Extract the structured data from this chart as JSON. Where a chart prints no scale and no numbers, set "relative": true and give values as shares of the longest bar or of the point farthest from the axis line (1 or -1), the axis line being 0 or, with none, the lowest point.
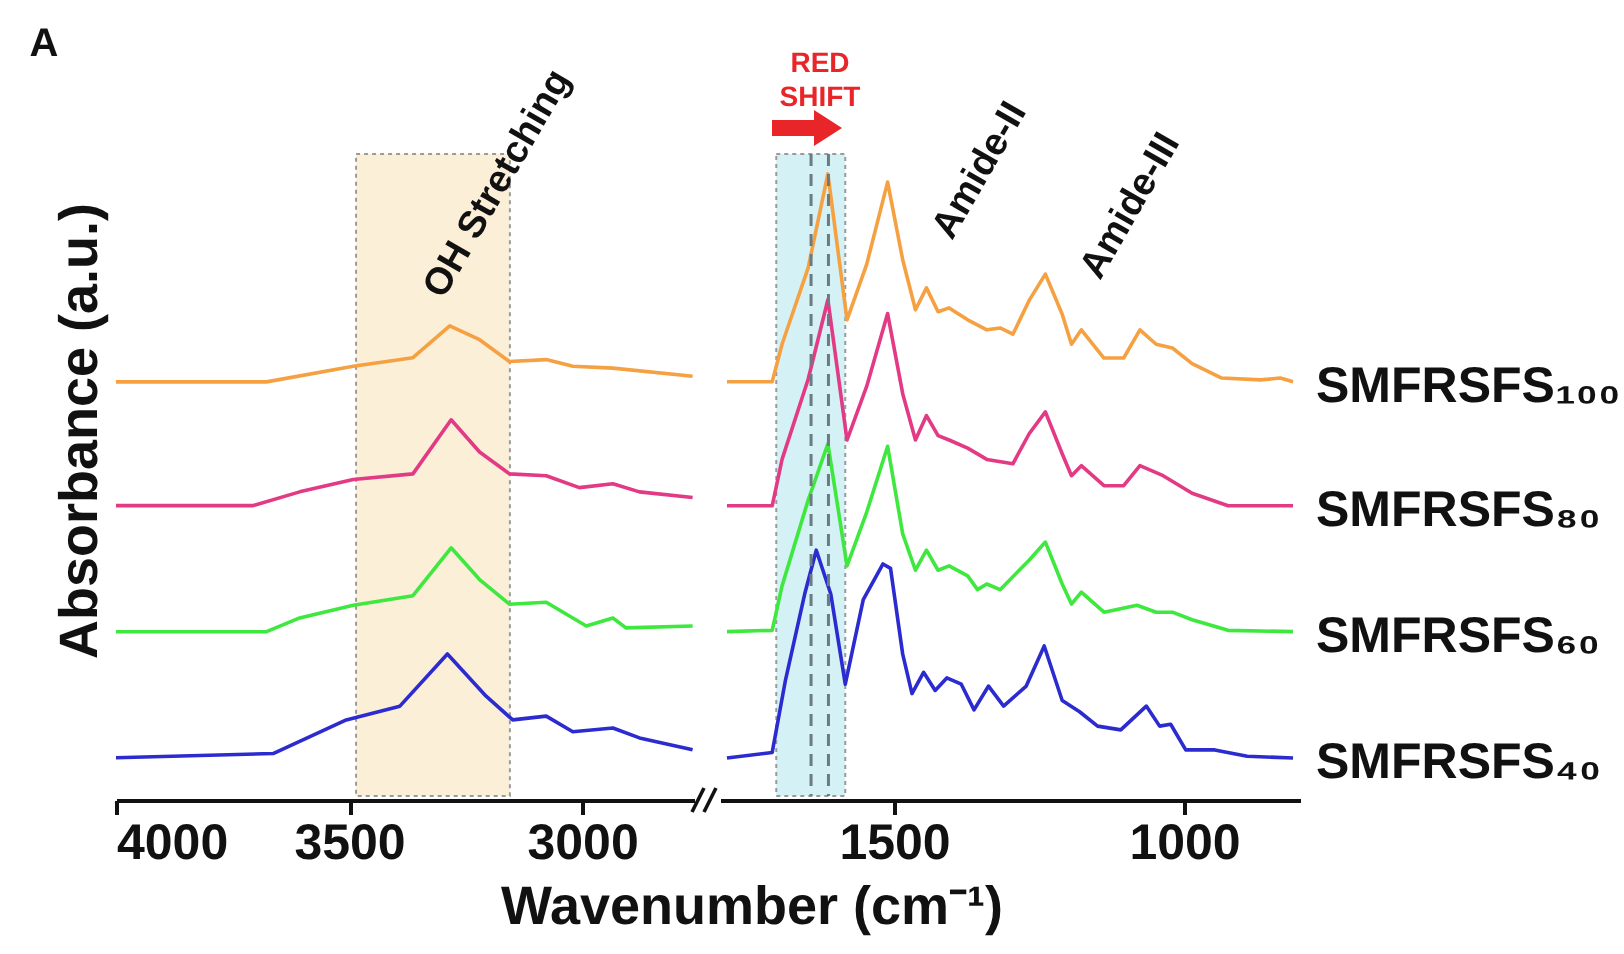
{
  "chart_data": [
    {
      "type": "line",
      "title": "A",
      "ylabel": "Absorbance (a.u.)",
      "relative": true,
      "xlim": [
        4000,
        2760
      ],
      "xticks": [
        4000,
        3500,
        3000
      ],
      "bands": [
        {
          "axis": "x",
          "from": 3485,
          "to": 3155,
          "label": "OH Stretching",
          "color": "#fbefd8"
        }
      ],
      "series": [
        {
          "color": "#f5a142",
          "x": [
            4000,
            3677,
            3491,
            3363,
            3284,
            3220,
            3156,
            3077,
            3020,
            2934,
            2763
          ],
          "values": [
            0.882,
            0.882,
            0.915,
            0.933,
            1.0,
            0.971,
            0.925,
            0.929,
            0.915,
            0.911,
            0.894
          ]
        },
        {
          "color": "#e23a84",
          "x": [
            4000,
            3706,
            3606,
            3491,
            3363,
            3281,
            3220,
            3156,
            3077,
            3006,
            2934,
            2877,
            2763
          ],
          "values": [
            0.621,
            0.621,
            0.65,
            0.676,
            0.688,
            0.802,
            0.734,
            0.688,
            0.684,
            0.659,
            0.667,
            0.65,
            0.638
          ]
        },
        {
          "color": "#3ee83e",
          "x": [
            4000,
            3677,
            3606,
            3491,
            3363,
            3281,
            3220,
            3156,
            3077,
            2991,
            2934,
            2906,
            2763
          ],
          "values": [
            0.355,
            0.355,
            0.384,
            0.411,
            0.431,
            0.532,
            0.465,
            0.413,
            0.417,
            0.367,
            0.384,
            0.363,
            0.367
          ]
        },
        {
          "color": "#2b2bd0",
          "x": [
            4000,
            3663,
            3506,
            3391,
            3289,
            3206,
            3149,
            3077,
            3020,
            2934,
            2877,
            2763
          ],
          "values": [
            0.089,
            0.098,
            0.169,
            0.198,
            0.308,
            0.219,
            0.169,
            0.177,
            0.144,
            0.152,
            0.131,
            0.106
          ]
        }
      ]
    },
    {
      "type": "line",
      "xlabel": "Wavenumber (cm⁻¹)",
      "relative": true,
      "xlim": [
        1800,
        800
      ],
      "xticks": [
        1500,
        1000
      ],
      "bands": [
        {
          "axis": "x",
          "from": 1703,
          "to": 1584,
          "color": "#d4f1f6"
        }
      ],
      "ref_lines": [
        {
          "axis": "x",
          "value": 1643,
          "line_style": "dashed",
          "color": "#6b7b80"
        },
        {
          "axis": "x",
          "value": 1613,
          "line_style": "dashed",
          "color": "#6b7b80"
        }
      ],
      "annotations": [
        "RED SHIFT",
        "Amide-II",
        "Amide-III"
      ],
      "series": [
        {
          "name": "SMFRSFS₁₀₀",
          "color": "#f5a142",
          "x": [
            1788,
            1710,
            1693,
            1648,
            1614,
            1581,
            1547,
            1511,
            1485,
            1463,
            1444,
            1424,
            1405,
            1373,
            1340,
            1317,
            1295,
            1267,
            1239,
            1210,
            1194,
            1177,
            1138,
            1104,
            1076,
            1048,
            1020,
            986,
            935,
            868,
            834,
            812
          ],
          "values": [
            0.668,
            0.668,
            0.728,
            0.85,
            1.0,
            0.767,
            0.856,
            0.987,
            0.863,
            0.783,
            0.818,
            0.78,
            0.786,
            0.767,
            0.751,
            0.754,
            0.744,
            0.798,
            0.84,
            0.776,
            0.728,
            0.751,
            0.706,
            0.706,
            0.751,
            0.728,
            0.722,
            0.697,
            0.674,
            0.671,
            0.674,
            0.668
          ]
        },
        {
          "name": "SMFRSFS₈₀",
          "color": "#e23a84",
          "x": [
            1788,
            1710,
            1693,
            1648,
            1614,
            1581,
            1547,
            1511,
            1485,
            1463,
            1444,
            1424,
            1405,
            1373,
            1340,
            1295,
            1267,
            1239,
            1210,
            1194,
            1177,
            1138,
            1104,
            1076,
            1036,
            986,
            924,
            812
          ],
          "values": [
            0.47,
            0.47,
            0.544,
            0.672,
            0.799,
            0.575,
            0.661,
            0.777,
            0.649,
            0.575,
            0.614,
            0.582,
            0.575,
            0.562,
            0.544,
            0.537,
            0.585,
            0.62,
            0.553,
            0.518,
            0.534,
            0.502,
            0.502,
            0.534,
            0.518,
            0.49,
            0.47,
            0.47
          ]
        },
        {
          "name": "SMFRSFS₆₀",
          "color": "#3ee83e",
          "x": [
            1788,
            1710,
            1693,
            1648,
            1614,
            1581,
            1547,
            1511,
            1485,
            1463,
            1444,
            1424,
            1405,
            1373,
            1356,
            1340,
            1317,
            1267,
            1239,
            1210,
            1194,
            1177,
            1138,
            1081,
            1048,
            1020,
            986,
            924,
            812
          ],
          "values": [
            0.269,
            0.271,
            0.342,
            0.479,
            0.569,
            0.374,
            0.46,
            0.565,
            0.425,
            0.367,
            0.399,
            0.367,
            0.374,
            0.358,
            0.336,
            0.345,
            0.336,
            0.383,
            0.412,
            0.345,
            0.313,
            0.332,
            0.3,
            0.311,
            0.3,
            0.3,
            0.288,
            0.271,
            0.269
          ]
        },
        {
          "name": "SMFRSFS₄₀",
          "color": "#2b2bd0",
          "x": [
            1788,
            1710,
            1687,
            1654,
            1634,
            1609,
            1584,
            1553,
            1519,
            1506,
            1485,
            1469,
            1449,
            1429,
            1409,
            1384,
            1362,
            1337,
            1311,
            1272,
            1241,
            1210,
            1180,
            1149,
            1109,
            1065,
            1042,
            1023,
            997,
            947,
            891,
            812
          ],
          "values": [
            0.067,
            0.076,
            0.192,
            0.329,
            0.399,
            0.329,
            0.185,
            0.32,
            0.377,
            0.37,
            0.233,
            0.17,
            0.204,
            0.175,
            0.195,
            0.185,
            0.144,
            0.182,
            0.15,
            0.182,
            0.246,
            0.159,
            0.141,
            0.118,
            0.112,
            0.15,
            0.118,
            0.121,
            0.08,
            0.08,
            0.07,
            0.067
          ]
        }
      ]
    }
  ]
}
